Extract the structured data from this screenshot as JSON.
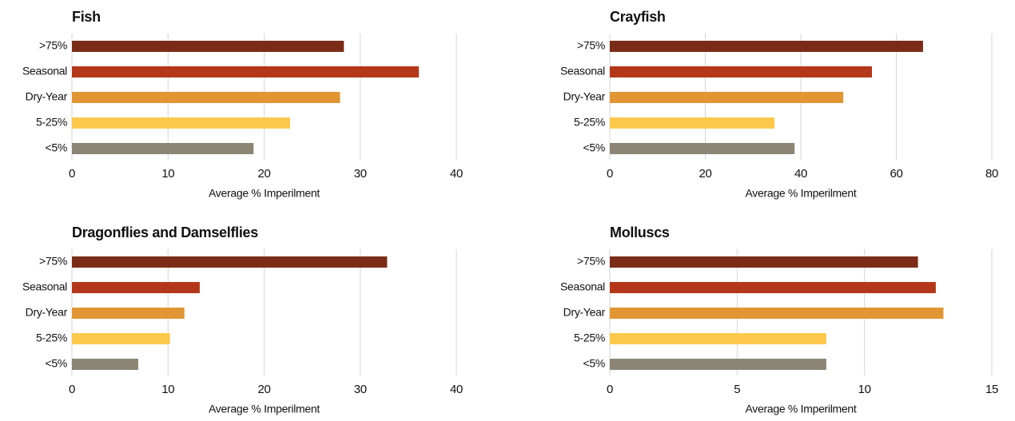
{
  "chart_data": [
    {
      "type": "bar",
      "title": "Fish",
      "categories": [
        ">75%",
        "Seasonal",
        "Dry-Year",
        "5-25%",
        "<5%"
      ],
      "values": [
        28.3,
        36.1,
        27.9,
        22.7,
        18.9
      ],
      "colors": [
        "#7b2c17",
        "#b5371a",
        "#e19633",
        "#fcc94c",
        "#8b8575"
      ],
      "xlabel": "Average % Imperilment",
      "xlim": [
        0,
        40
      ],
      "xticks": [
        0,
        10,
        20,
        30,
        40
      ],
      "grid": true
    },
    {
      "type": "bar",
      "title": "Crayfish",
      "categories": [
        ">75%",
        "Seasonal",
        "Dry-Year",
        "5-25%",
        "<5%"
      ],
      "values": [
        65.6,
        54.9,
        48.9,
        34.5,
        38.7
      ],
      "colors": [
        "#7b2c17",
        "#b5371a",
        "#e19633",
        "#fcc94c",
        "#8b8575"
      ],
      "xlabel": "Average % Imperilment",
      "xlim": [
        0,
        80
      ],
      "xticks": [
        0,
        20,
        40,
        60,
        80
      ],
      "grid": true
    },
    {
      "type": "bar",
      "title": "Dragonflies and Damselflies",
      "categories": [
        ">75%",
        "Seasonal",
        "Dry-Year",
        "5-25%",
        "<5%"
      ],
      "values": [
        32.8,
        13.3,
        11.7,
        10.2,
        6.9
      ],
      "colors": [
        "#7b2c17",
        "#b5371a",
        "#e19633",
        "#fcc94c",
        "#8b8575"
      ],
      "xlabel": "Average % Imperilment",
      "xlim": [
        0,
        40
      ],
      "xticks": [
        0,
        10,
        20,
        30,
        40
      ],
      "grid": true
    },
    {
      "type": "bar",
      "title": "Molluscs",
      "categories": [
        ">75%",
        "Seasonal",
        "Dry-Year",
        "5-25%",
        "<5%"
      ],
      "values": [
        12.1,
        12.8,
        13.1,
        8.5,
        8.5
      ],
      "colors": [
        "#7b2c17",
        "#b5371a",
        "#e19633",
        "#fcc94c",
        "#8b8575"
      ],
      "xlabel": "Average % Imperilment",
      "xlim": [
        0,
        15
      ],
      "xticks": [
        0,
        5,
        10,
        15
      ],
      "grid": true
    }
  ]
}
